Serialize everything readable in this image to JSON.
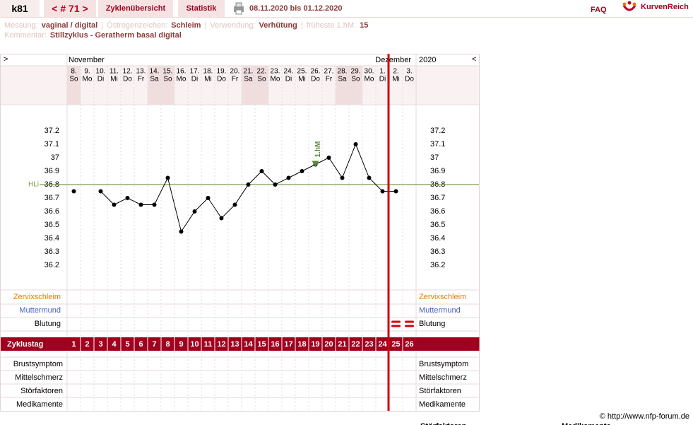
{
  "header": {
    "user": "k81",
    "cycle_nav": "< # 71 >",
    "tabs": [
      "Zyklenübersicht",
      "Statistik"
    ],
    "date_range": "08.11.2020 bis 01.12.2020",
    "faq": "FAQ",
    "brand": "KurvenReich"
  },
  "info": {
    "separator": "|",
    "items": [
      {
        "label": "Messung:",
        "value": "vaginal / digital"
      },
      {
        "label": "Östrogenzeichen:",
        "value": "Schleim"
      },
      {
        "label": "Verwendung:",
        "value": "Verhütung"
      },
      {
        "label": "früheste 1.hM:",
        "value": "15"
      }
    ],
    "comment_label": "Kommentar:",
    "comment": "Stillzyklus - Geratherm basal digital"
  },
  "chart_data": {
    "type": "line",
    "nav_prev": ">",
    "nav_next": "<",
    "month_labels": [
      "November",
      "Dezember"
    ],
    "year": "2020",
    "categories": [
      "8.",
      "9.",
      "10.",
      "11.",
      "12.",
      "13.",
      "14.",
      "15.",
      "16.",
      "17.",
      "18.",
      "19.",
      "20.",
      "21.",
      "22.",
      "23.",
      "24.",
      "25.",
      "26.",
      "27.",
      "28.",
      "29.",
      "30.",
      "1.",
      "2.",
      "3."
    ],
    "weekdays": [
      "So",
      "Mo",
      "Di",
      "Mi",
      "Do",
      "Fr",
      "Sa",
      "So",
      "Mo",
      "Di",
      "Mi",
      "Do",
      "Fr",
      "Sa",
      "So",
      "Mo",
      "Di",
      "Mi",
      "Do",
      "Fr",
      "Sa",
      "So",
      "Mo",
      "Di",
      "Mi",
      "Do"
    ],
    "values": [
      36.75,
      null,
      36.75,
      36.65,
      36.7,
      36.65,
      36.65,
      36.85,
      36.45,
      36.6,
      36.7,
      36.55,
      36.65,
      36.8,
      36.9,
      36.8,
      36.85,
      36.9,
      36.95,
      37.0,
      36.85,
      37.1,
      36.85,
      36.75,
      36.75,
      null
    ],
    "color": "#000000",
    "ylim": [
      36.0,
      37.4
    ],
    "yticks": [
      36.2,
      36.3,
      36.4,
      36.5,
      36.6,
      36.7,
      36.8,
      36.9,
      37,
      37.1,
      37.2
    ],
    "coverline": {
      "label": "HLi",
      "value": 36.8,
      "color": "#7a9a50"
    },
    "annotation": {
      "label": "1.hM",
      "cycle_day": 19,
      "color": "#5a8a3a"
    },
    "cycle_label": "Zyklustag",
    "cycle_days": [
      1,
      2,
      3,
      4,
      5,
      6,
      7,
      8,
      9,
      10,
      11,
      12,
      13,
      14,
      15,
      16,
      17,
      18,
      19,
      20,
      21,
      22,
      23,
      24,
      25,
      26
    ],
    "rows_top": [
      "Zervixschleim",
      "Muttermund",
      "Blutung"
    ],
    "rows_top_colors": [
      "#e07a10",
      "#4a5fc0",
      "#000000"
    ],
    "rows_bottom": [
      "Brustsymptom",
      "Mittelschmerz",
      "Störfaktoren",
      "Medikamente"
    ],
    "bleeding_cycle_days": [
      25,
      26
    ]
  },
  "footer": {
    "copyright": "© http://www.nfp-forum.de",
    "cut_labels": [
      "Störfaktoren",
      "Medikamente"
    ]
  }
}
